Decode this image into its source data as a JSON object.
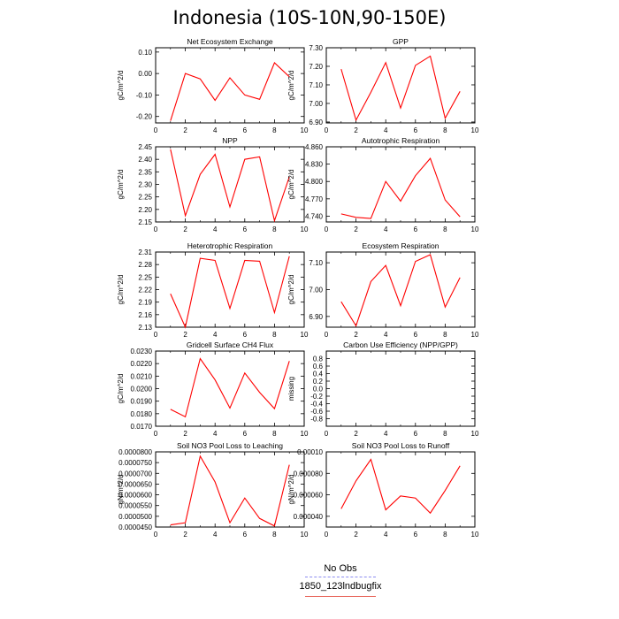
{
  "title": "Indonesia (10S-10N,90-150E)",
  "legend": {
    "items": [
      {
        "label": "No Obs",
        "color": "#8c8cf0",
        "style": "dashed"
      },
      {
        "label": "1850_123lndbugfix",
        "color": "#e8645a",
        "style": "solid"
      }
    ]
  },
  "chart_data": [
    {
      "type": "line",
      "title": "Net Ecosystem Exchange",
      "xlabel": "",
      "ylabel": "gC/m^2/d",
      "xlim": [
        0,
        10
      ],
      "xticks": [
        "0",
        "2",
        "4",
        "6",
        "8",
        "10"
      ],
      "ylim": [
        -0.23,
        0.12
      ],
      "yticks": [
        -0.2,
        -0.1,
        0.0,
        0.1
      ],
      "ytick_labels": [
        "-0.20",
        "-0.10",
        "0.00",
        "0.10"
      ],
      "grid": false,
      "color": "#ff0000",
      "x": [
        1,
        2,
        3,
        4,
        5,
        6,
        7,
        8,
        9
      ],
      "series": [
        {
          "values": [
            -0.22,
            0.0,
            -0.025,
            -0.125,
            -0.02,
            -0.1,
            -0.12,
            0.05,
            -0.015
          ]
        }
      ]
    },
    {
      "type": "line",
      "title": "GPP",
      "xlabel": "",
      "ylabel": "gC/m^2/d",
      "xlim": [
        0,
        10
      ],
      "xticks": [
        "0",
        "2",
        "4",
        "6",
        "8",
        "10"
      ],
      "ylim": [
        6.895,
        7.3
      ],
      "yticks": [
        6.9,
        7.0,
        7.1,
        7.2,
        7.3
      ],
      "ytick_labels": [
        "6.90",
        "7.00",
        "7.10",
        "7.20",
        "7.30"
      ],
      "grid": false,
      "color": "#ff0000",
      "x": [
        1,
        2,
        3,
        4,
        5,
        6,
        7,
        8,
        9
      ],
      "series": [
        {
          "values": [
            7.185,
            6.91,
            7.06,
            7.22,
            6.975,
            7.205,
            7.255,
            6.92,
            7.065
          ]
        }
      ]
    },
    {
      "type": "line",
      "title": "NPP",
      "xlabel": "",
      "ylabel": "gC/m^2/d",
      "xlim": [
        0,
        10
      ],
      "xticks": [
        "0",
        "2",
        "4",
        "6",
        "8",
        "10"
      ],
      "ylim": [
        2.15,
        2.45
      ],
      "yticks": [
        2.15,
        2.2,
        2.25,
        2.3,
        2.35,
        2.4,
        2.45
      ],
      "ytick_labels": [
        "2.15",
        "2.20",
        "2.25",
        "2.30",
        "2.35",
        "2.40",
        "2.45"
      ],
      "grid": false,
      "color": "#ff0000",
      "x": [
        1,
        2,
        3,
        4,
        5,
        6,
        7,
        8,
        9
      ],
      "series": [
        {
          "values": [
            2.44,
            2.175,
            2.34,
            2.42,
            2.21,
            2.4,
            2.41,
            2.155,
            2.33
          ]
        }
      ]
    },
    {
      "type": "line",
      "title": "Autotrophic Respiration",
      "xlabel": "",
      "ylabel": "gC/m^2/d",
      "xlim": [
        0,
        10
      ],
      "xticks": [
        "0",
        "2",
        "4",
        "6",
        "8",
        "10"
      ],
      "ylim": [
        4.73,
        4.86
      ],
      "yticks": [
        4.74,
        4.77,
        4.8,
        4.83,
        4.86
      ],
      "ytick_labels": [
        "4.740",
        "4.770",
        "4.800",
        "4.830",
        "4.860"
      ],
      "grid": false,
      "color": "#ff0000",
      "x": [
        1,
        2,
        3,
        4,
        5,
        6,
        7,
        8,
        9
      ],
      "series": [
        {
          "values": [
            4.744,
            4.738,
            4.736,
            4.8,
            4.766,
            4.81,
            4.84,
            4.768,
            4.739
          ]
        }
      ]
    },
    {
      "type": "line",
      "title": "Heterotrophic Respiration",
      "xlabel": "",
      "ylabel": "gC/m^2/d",
      "xlim": [
        0,
        10
      ],
      "xticks": [
        "0",
        "2",
        "4",
        "6",
        "8",
        "10"
      ],
      "ylim": [
        2.13,
        2.31
      ],
      "yticks": [
        2.13,
        2.16,
        2.19,
        2.22,
        2.25,
        2.28,
        2.31
      ],
      "ytick_labels": [
        "2.13",
        "2.16",
        "2.19",
        "2.22",
        "2.25",
        "2.28",
        "2.31"
      ],
      "grid": false,
      "color": "#ff0000",
      "x": [
        1,
        2,
        3,
        4,
        5,
        6,
        7,
        8,
        9
      ],
      "series": [
        {
          "values": [
            2.21,
            2.13,
            2.295,
            2.29,
            2.175,
            2.29,
            2.288,
            2.165,
            2.3
          ]
        }
      ]
    },
    {
      "type": "line",
      "title": "Ecosystem Respiration",
      "xlabel": "",
      "ylabel": "gC/m^2/d",
      "xlim": [
        0,
        10
      ],
      "xticks": [
        "0",
        "2",
        "4",
        "6",
        "8",
        "10"
      ],
      "ylim": [
        6.86,
        7.14
      ],
      "yticks": [
        6.9,
        7.0,
        7.1
      ],
      "ytick_labels": [
        "6.90",
        "7.00",
        "7.10"
      ],
      "grid": false,
      "color": "#ff0000",
      "x": [
        1,
        2,
        3,
        4,
        5,
        6,
        7,
        8,
        9
      ],
      "series": [
        {
          "values": [
            6.955,
            6.865,
            7.03,
            7.09,
            6.94,
            7.105,
            7.13,
            6.935,
            7.045
          ]
        }
      ]
    },
    {
      "type": "line",
      "title": "Gridcell Surface CH4 Flux",
      "xlabel": "",
      "ylabel": "gC/m^2/d",
      "xlim": [
        0,
        10
      ],
      "xticks": [
        "0",
        "2",
        "4",
        "6",
        "8",
        "10"
      ],
      "ylim": [
        0.017,
        0.023
      ],
      "yticks": [
        0.017,
        0.018,
        0.019,
        0.02,
        0.021,
        0.022,
        0.023
      ],
      "ytick_labels": [
        "0.0170",
        "0.0180",
        "0.0190",
        "0.0200",
        "0.0210",
        "0.0220",
        "0.0230"
      ],
      "grid": false,
      "color": "#ff0000",
      "x": [
        1,
        2,
        3,
        4,
        5,
        6,
        7,
        8,
        9
      ],
      "series": [
        {
          "values": [
            0.01835,
            0.01775,
            0.0224,
            0.0207,
            0.01845,
            0.02125,
            0.0197,
            0.0184,
            0.0222
          ]
        }
      ]
    },
    {
      "type": "line",
      "title": "Carbon Use Efficiency (NPP/GPP)",
      "xlabel": "",
      "ylabel": "missing",
      "xlim": [
        0,
        10
      ],
      "xticks": [
        "0",
        "2",
        "4",
        "6",
        "8",
        "10"
      ],
      "ylim": [
        -1,
        1
      ],
      "yticks": [
        -0.8,
        -0.6,
        -0.4,
        -0.2,
        0.0,
        0.2,
        0.4,
        0.6,
        0.8
      ],
      "ytick_labels": [
        "-0.8",
        "-0.6",
        "-0.4",
        "-0.2",
        "0.0",
        "0.2",
        "0.4",
        "0.6",
        "0.8"
      ],
      "grid": false,
      "color": "#ff0000",
      "x": [],
      "series": []
    },
    {
      "type": "line",
      "title": "Soil NO3 Pool Loss to Leaching",
      "xlabel": "",
      "ylabel": "gN/m^2/d",
      "xlim": [
        0,
        10
      ],
      "xticks": [
        "0",
        "2",
        "4",
        "6",
        "8",
        "10"
      ],
      "ylim": [
        4.5e-05,
        8e-05
      ],
      "yticks": [
        4.5e-05,
        5e-05,
        5.5e-05,
        6e-05,
        6.5e-05,
        7e-05,
        7.5e-05,
        8e-05
      ],
      "ytick_labels": [
        "0.0000450",
        "0.0000500",
        "0.0000550",
        "0.0000600",
        "0.0000650",
        "0.0000700",
        "0.0000750",
        "0.0000800"
      ],
      "grid": false,
      "color": "#ff0000",
      "x": [
        1,
        2,
        3,
        4,
        5,
        6,
        7,
        8,
        9
      ],
      "series": [
        {
          "values": [
            4.6e-05,
            4.7e-05,
            7.8e-05,
            6.6e-05,
            4.7e-05,
            5.85e-05,
            4.9e-05,
            4.55e-05,
            7.4e-05
          ]
        }
      ]
    },
    {
      "type": "line",
      "title": "Soil NO3 Pool Loss to Runoff",
      "xlabel": "",
      "ylabel": "gN/m^2/d",
      "xlim": [
        0,
        10
      ],
      "xticks": [
        "0",
        "2",
        "4",
        "6",
        "8",
        "10"
      ],
      "ylim": [
        3e-05,
        0.0001
      ],
      "yticks": [
        4e-05,
        6e-05,
        8e-05,
        0.0001
      ],
      "ytick_labels": [
        "0.000040",
        "0.000060",
        "0.000080",
        "0.00010"
      ],
      "grid": false,
      "color": "#ff0000",
      "x": [
        1,
        2,
        3,
        4,
        5,
        6,
        7,
        8,
        9
      ],
      "series": [
        {
          "values": [
            4.7e-05,
            7.3e-05,
            9.3e-05,
            4.6e-05,
            5.9e-05,
            5.7e-05,
            4.3e-05,
            6.4e-05,
            8.7e-05
          ]
        }
      ]
    }
  ]
}
